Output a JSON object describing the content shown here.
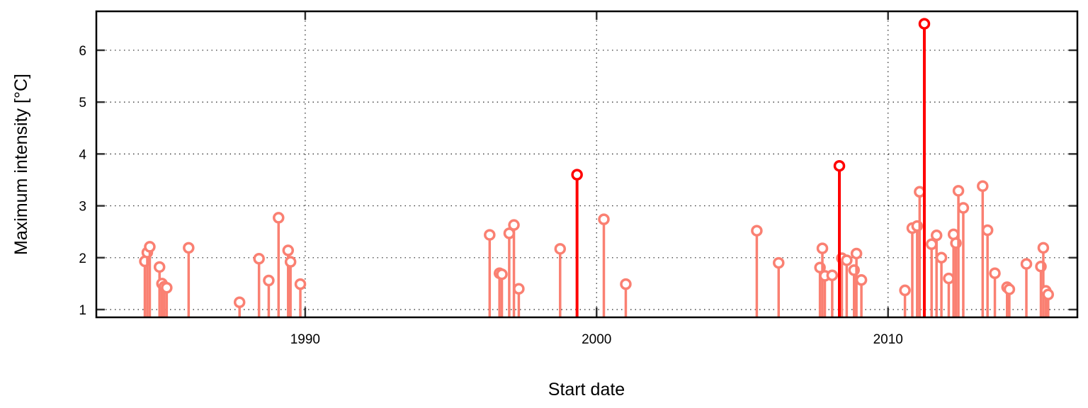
{
  "chart_data": {
    "type": "scatter",
    "subtype": "stem",
    "xlabel": "Start date",
    "ylabel": "Maximum intensity [°C]",
    "x_ticks": [
      "1990",
      "2000",
      "2010"
    ],
    "y_ticks": [
      "1",
      "2",
      "3",
      "4",
      "5",
      "6"
    ],
    "xlim": [
      "1982-11-01",
      "2016-07-01"
    ],
    "ylim": [
      0.85,
      6.75
    ],
    "grid": true,
    "legend": "none",
    "colors": {
      "normal": "#fa8072",
      "highlight": "#ff0000"
    },
    "series": [
      {
        "color": "#fa8072",
        "x": [
          "1984-07-01",
          "1984-08-01",
          "1984-09-01",
          "1985-01-01",
          "1985-02-01",
          "1985-03-01",
          "1985-04-01",
          "1986-01-01",
          "1987-10-01",
          "1988-06-01",
          "1988-10-01",
          "1989-02-01",
          "1989-06-01",
          "1989-07-01",
          "1989-11-01",
          "1996-05-01",
          "1996-09-01",
          "1996-10-01",
          "1997-01-01",
          "1997-03-01",
          "1997-05-01",
          "1998-10-01",
          "2000-04-01",
          "2001-01-01",
          "2005-07-01",
          "2006-04-01",
          "2007-09-01",
          "2007-10-01",
          "2007-11-01",
          "2008-02-01",
          "2008-06-01",
          "2008-08-01",
          "2008-11-01",
          "2008-12-01",
          "2009-02-01",
          "2010-08-01",
          "2010-11-01",
          "2011-01-01",
          "2011-02-01",
          "2011-07-01",
          "2011-09-01",
          "2011-11-01",
          "2012-02-01",
          "2012-04-01",
          "2012-05-01",
          "2012-06-01",
          "2012-08-01",
          "2013-04-01",
          "2013-06-01",
          "2013-09-01",
          "2014-02-01",
          "2014-03-01",
          "2014-10-01",
          "2015-04-01",
          "2015-05-01",
          "2015-06-01",
          "2015-07-01"
        ],
        "y": [
          1.93,
          2.1,
          2.21,
          1.82,
          1.5,
          1.44,
          1.42,
          2.19,
          1.14,
          1.98,
          1.56,
          2.77,
          2.14,
          1.92,
          1.49,
          2.44,
          1.7,
          1.68,
          2.47,
          2.63,
          1.4,
          2.17,
          2.74,
          1.49,
          2.52,
          1.9,
          1.81,
          2.18,
          1.65,
          1.66,
          1.99,
          1.95,
          1.76,
          2.08,
          1.57,
          1.37,
          2.57,
          2.61,
          3.27,
          2.26,
          2.43,
          2.0,
          1.6,
          2.45,
          2.28,
          3.29,
          2.96,
          3.38,
          2.53,
          1.7,
          1.43,
          1.39,
          1.88,
          1.83,
          2.19,
          1.36,
          1.29
        ]
      },
      {
        "color": "#ff0000",
        "x": [
          "1999-05-01",
          "2008-05-01",
          "2011-04-01"
        ],
        "y": [
          3.6,
          3.77,
          6.51
        ]
      }
    ]
  }
}
